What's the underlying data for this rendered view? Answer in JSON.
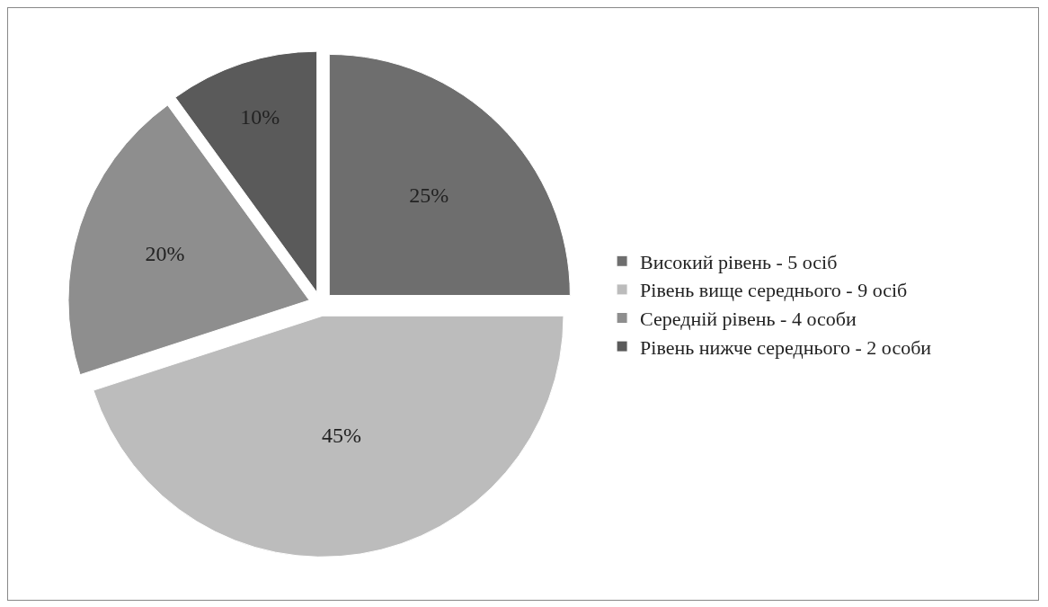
{
  "chart_data": {
    "type": "pie",
    "categories": [
      "Високий рівень - 5 осіб",
      "Рівень вище середнього - 9 осіб",
      "Середній рівень - 4 особи",
      "Рівень нижче середнього - 2 особи"
    ],
    "values": [
      25,
      45,
      20,
      10
    ],
    "value_labels": [
      "25%",
      "45%",
      "20%",
      "10%"
    ],
    "colors": [
      "#6e6e6e",
      "#bcbcbc",
      "#8e8e8e",
      "#5a5a5a"
    ],
    "legend": "right"
  }
}
